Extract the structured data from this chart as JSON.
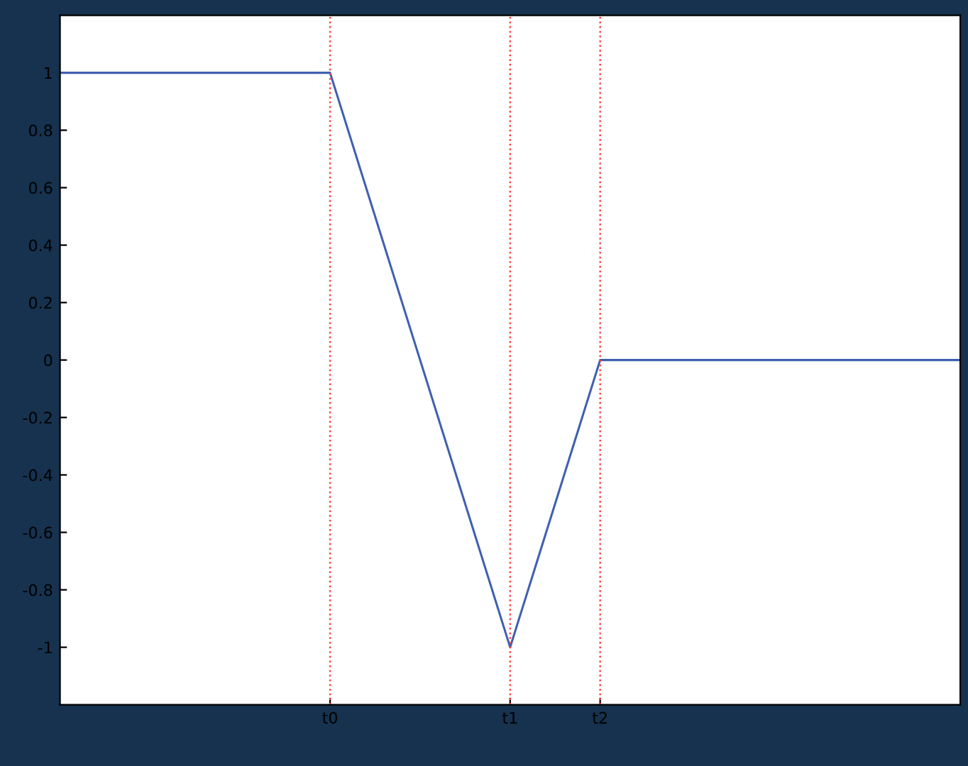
{
  "chart_data": {
    "type": "line",
    "categories": [
      null,
      null,
      null,
      "t0",
      null,
      "t1",
      "t2",
      null,
      null,
      null,
      null
    ],
    "series": [
      {
        "color": "#4060b0",
        "values": [
          1,
          1,
          1,
          1,
          0,
          -1,
          0,
          0,
          0,
          0,
          0
        ]
      }
    ],
    "ylim": [
      -1.2,
      1.2
    ],
    "yticks": [
      {
        "value": -1,
        "label": "-1"
      },
      {
        "value": -0.8,
        "label": "-0.8"
      },
      {
        "value": -0.6,
        "label": "-0.6"
      },
      {
        "value": -0.4,
        "label": "-0.4"
      },
      {
        "value": -0.2,
        "label": "-0.2"
      },
      0,
      {
        "value": 0.2,
        "label": "0.2"
      },
      {
        "value": 0.4,
        "label": "0.4"
      },
      {
        "value": 0.6,
        "label": "0.6"
      },
      {
        "value": 0.8,
        "label": "0.8"
      },
      1
    ],
    "ref_lines": [
      {
        "axis": "x",
        "value": "t0",
        "color": "#ff4040",
        "line_style": "dotted"
      },
      {
        "axis": "x",
        "value": "t1",
        "color": "#ff4040",
        "line_style": "dotted"
      },
      {
        "axis": "x",
        "value": "t2",
        "color": "#ff4040",
        "line_style": "dotted"
      }
    ],
    "grid": false,
    "legend": false
  }
}
